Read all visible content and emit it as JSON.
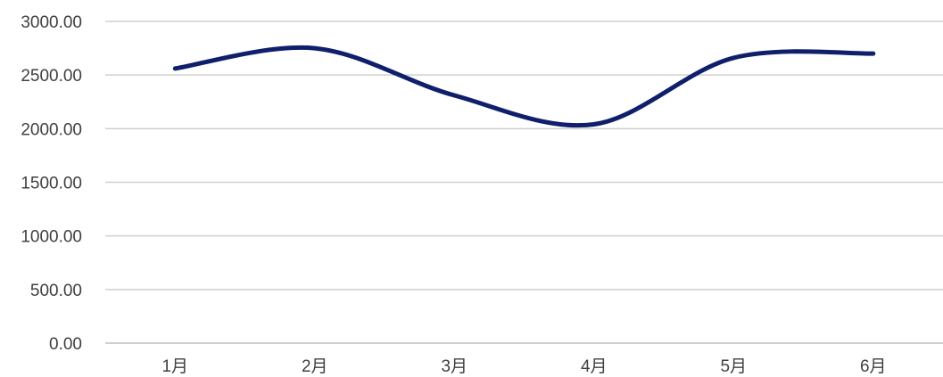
{
  "chart_data": {
    "type": "line",
    "title": "",
    "xlabel": "",
    "ylabel": "",
    "categories": [
      "1月",
      "2月",
      "3月",
      "4月",
      "5月",
      "6月"
    ],
    "series": [
      {
        "values": [
          2560,
          2750,
          2310,
          2040,
          2660,
          2700
        ],
        "color": "#0f1f6b",
        "smooth": true
      }
    ],
    "ylim": [
      0,
      3000
    ],
    "yticks": [
      0,
      500,
      1000,
      1500,
      2000,
      2500,
      3000
    ],
    "ytick_labels": [
      "0.00",
      "500.00",
      "1000.00",
      "1500.00",
      "2000.00",
      "2500.00",
      "3000.00"
    ],
    "grid": true,
    "legend": "none"
  }
}
